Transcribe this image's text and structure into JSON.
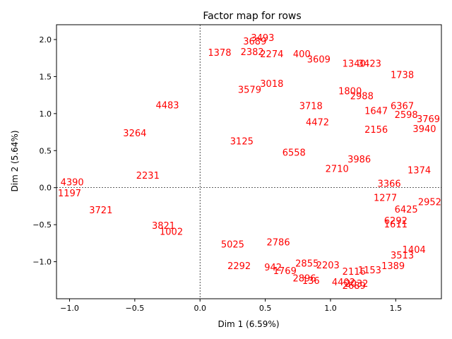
{
  "chart_data": {
    "type": "scatter",
    "title": "Factor map for rows",
    "xlabel": "Dim 1 (6.59%)",
    "ylabel": "Dim 2 (5.64%)",
    "xlim": [
      -1.1,
      1.85
    ],
    "ylim": [
      -1.5,
      2.2
    ],
    "xticks": [
      -1.0,
      -0.5,
      0.0,
      0.5,
      1.0,
      1.5
    ],
    "yticks": [
      -1.0,
      -0.5,
      0.0,
      0.5,
      1.0,
      1.5,
      2.0
    ],
    "xtick_labels": [
      "−1.0",
      "−0.5",
      "0.0",
      "0.5",
      "1.0",
      "1.5"
    ],
    "ytick_labels": [
      "−1.0",
      "−0.5",
      "0.0",
      "0.5",
      "1.0",
      "1.5",
      "2.0"
    ],
    "reference_lines": {
      "x": 0,
      "y": 0,
      "style": "dashed"
    },
    "marker_color": "#ff0000",
    "grid": false,
    "points": [
      {
        "label": "1378",
        "x": 0.15,
        "y": 1.82
      },
      {
        "label": "3493",
        "x": 0.48,
        "y": 2.02
      },
      {
        "label": "3689",
        "x": 0.42,
        "y": 1.97
      },
      {
        "label": "2382",
        "x": 0.4,
        "y": 1.83
      },
      {
        "label": "2274",
        "x": 0.55,
        "y": 1.8
      },
      {
        "label": "400",
        "x": 0.78,
        "y": 1.8
      },
      {
        "label": "3609",
        "x": 0.91,
        "y": 1.73
      },
      {
        "label": "1738",
        "x": 1.55,
        "y": 1.52
      },
      {
        "label": "3423",
        "x": 1.3,
        "y": 1.67
      },
      {
        "label": "1340",
        "x": 1.18,
        "y": 1.67
      },
      {
        "label": "1800",
        "x": 1.15,
        "y": 1.3
      },
      {
        "label": "2988",
        "x": 1.24,
        "y": 1.23
      },
      {
        "label": "6367",
        "x": 1.55,
        "y": 1.1
      },
      {
        "label": "1647",
        "x": 1.35,
        "y": 1.03
      },
      {
        "label": "2598",
        "x": 1.58,
        "y": 0.98
      },
      {
        "label": "3769",
        "x": 1.75,
        "y": 0.92
      },
      {
        "label": "3940",
        "x": 1.72,
        "y": 0.79
      },
      {
        "label": "1374",
        "x": 1.68,
        "y": 0.23
      },
      {
        "label": "2952",
        "x": 1.76,
        "y": -0.2
      },
      {
        "label": "6425",
        "x": 1.58,
        "y": -0.3
      },
      {
        "label": "1277",
        "x": 1.42,
        "y": -0.14
      },
      {
        "label": "1404",
        "x": 1.64,
        "y": -0.84
      },
      {
        "label": "1389",
        "x": 1.48,
        "y": -1.06
      },
      {
        "label": "2116",
        "x": 1.18,
        "y": -1.14
      },
      {
        "label": "2032",
        "x": 1.2,
        "y": -1.3
      },
      {
        "label": "2689",
        "x": 1.18,
        "y": -1.33
      },
      {
        "label": "136",
        "x": 0.85,
        "y": -1.26
      },
      {
        "label": "2896",
        "x": 0.8,
        "y": -1.23
      },
      {
        "label": "942",
        "x": 0.56,
        "y": -1.08
      },
      {
        "label": "2292",
        "x": 0.3,
        "y": -1.06
      },
      {
        "label": "1769",
        "x": 0.65,
        "y": -1.13
      },
      {
        "label": "2855",
        "x": 0.82,
        "y": -1.03
      },
      {
        "label": "2203",
        "x": 0.98,
        "y": -1.05
      },
      {
        "label": "3721",
        "x": -0.76,
        "y": -0.31
      },
      {
        "label": "1197",
        "x": -1.0,
        "y": -0.08
      },
      {
        "label": "4390",
        "x": -0.98,
        "y": 0.07
      },
      {
        "label": "6558",
        "x": 0.72,
        "y": 0.47
      },
      {
        "label": "4483",
        "x": -0.25,
        "y": 1.11
      },
      {
        "label": "3018",
        "x": 0.55,
        "y": 1.4
      },
      {
        "label": "3579",
        "x": 0.38,
        "y": 1.32
      },
      {
        "label": "3718",
        "x": 0.85,
        "y": 1.1
      },
      {
        "label": "3264",
        "x": -0.5,
        "y": 0.73
      },
      {
        "label": "2156",
        "x": 1.35,
        "y": 0.78
      },
      {
        "label": "3986",
        "x": 1.22,
        "y": 0.38
      },
      {
        "label": "2786",
        "x": 0.6,
        "y": -0.74
      },
      {
        "label": "3821",
        "x": -0.28,
        "y": -0.52
      },
      {
        "label": "1002",
        "x": -0.22,
        "y": -0.6
      },
      {
        "label": "5025",
        "x": 0.25,
        "y": -0.77
      },
      {
        "label": "6292",
        "x": 1.5,
        "y": -0.45
      },
      {
        "label": "1611",
        "x": 1.5,
        "y": -0.5
      },
      {
        "label": "3513",
        "x": 1.55,
        "y": -0.92
      },
      {
        "label": "1153",
        "x": 1.3,
        "y": -1.12
      },
      {
        "label": "4402",
        "x": 1.1,
        "y": -1.28
      },
      {
        "label": "3125",
        "x": 0.32,
        "y": 0.62
      },
      {
        "label": "4472",
        "x": 0.9,
        "y": 0.88
      },
      {
        "label": "2231",
        "x": -0.4,
        "y": 0.16
      },
      {
        "label": "3366",
        "x": 1.45,
        "y": 0.05
      },
      {
        "label": "2710",
        "x": 1.05,
        "y": 0.25
      }
    ]
  }
}
